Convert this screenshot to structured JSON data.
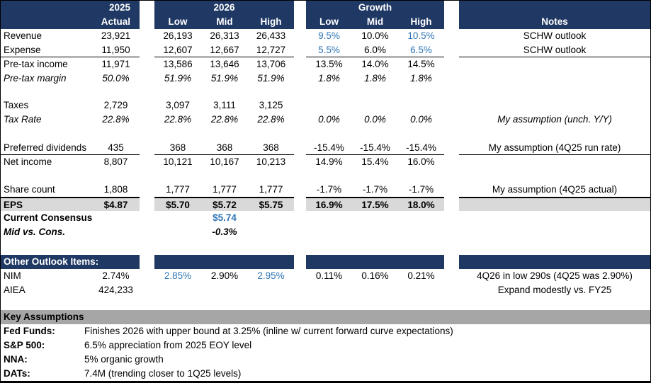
{
  "colors": {
    "header_navy": "#1F3864",
    "accent_blue": "#2E75B6",
    "eps_highlight_gray": "#D9D9D9",
    "section_bar_gray": "#A6A6A6"
  },
  "header": {
    "actual_year": "2025",
    "actual_label": "Actual",
    "forecast_year": "2026",
    "growth_label": "Growth",
    "low": "Low",
    "mid": "Mid",
    "high": "High",
    "notes_label": "Notes"
  },
  "rows": {
    "revenue": {
      "label": "Revenue",
      "actual": "23,921",
      "low": "26,193",
      "mid": "26,313",
      "high": "26,433",
      "growth_low": "9.5%",
      "growth_mid": "10.0%",
      "growth_high": "10.5%",
      "note": "SCHW outlook"
    },
    "expense": {
      "label": "Expense",
      "actual": "11,950",
      "low": "12,607",
      "mid": "12,667",
      "high": "12,727",
      "growth_low": "5.5%",
      "growth_mid": "6.0%",
      "growth_high": "6.5%",
      "note": "SCHW outlook"
    },
    "pretax_income": {
      "label": "Pre-tax income",
      "actual": "11,971",
      "low": "13,586",
      "mid": "13,646",
      "high": "13,706",
      "growth_low": "13.5%",
      "growth_mid": "14.0%",
      "growth_high": "14.5%"
    },
    "pretax_margin": {
      "label": "Pre-tax margin",
      "actual": "50.0%",
      "low": "51.9%",
      "mid": "51.9%",
      "high": "51.9%",
      "growth_low": "1.8%",
      "growth_mid": "1.8%",
      "growth_high": "1.8%"
    },
    "taxes": {
      "label": "Taxes",
      "actual": "2,729",
      "low": "3,097",
      "mid": "3,111",
      "high": "3,125"
    },
    "tax_rate": {
      "label": "Tax Rate",
      "actual": "22.8%",
      "low": "22.8%",
      "mid": "22.8%",
      "high": "22.8%",
      "growth_low": "0.0%",
      "growth_mid": "0.0%",
      "growth_high": "0.0%",
      "note": "My assumption (unch. Y/Y)"
    },
    "preferred_dividends": {
      "label": "Preferred dividends",
      "actual": "435",
      "low": "368",
      "mid": "368",
      "high": "368",
      "growth_low": "-15.4%",
      "growth_mid": "-15.4%",
      "growth_high": "-15.4%",
      "note": "My assumption (4Q25 run rate)"
    },
    "net_income": {
      "label": "Net income",
      "actual": "8,807",
      "low": "10,121",
      "mid": "10,167",
      "high": "10,213",
      "growth_low": "14.9%",
      "growth_mid": "15.4%",
      "growth_high": "16.0%"
    },
    "share_count": {
      "label": "Share count",
      "actual": "1,808",
      "low": "1,777",
      "mid": "1,777",
      "high": "1,777",
      "growth_low": "-1.7%",
      "growth_mid": "-1.7%",
      "growth_high": "-1.7%",
      "note": "My assumption (4Q25 actual)"
    },
    "eps": {
      "label": "EPS",
      "actual": "$4.87",
      "low": "$5.70",
      "mid": "$5.72",
      "high": "$5.75",
      "growth_low": "16.9%",
      "growth_mid": "17.5%",
      "growth_high": "18.0%"
    },
    "current_consensus": {
      "label": "Current Consensus",
      "mid": "$5.74"
    },
    "mid_vs_cons": {
      "label": "Mid vs. Cons.",
      "mid": "-0.3%"
    }
  },
  "other_outlook": {
    "section_title": "Other Outlook Items:",
    "nim": {
      "label": "NIM",
      "actual": "2.74%",
      "low": "2.85%",
      "mid": "2.90%",
      "high": "2.95%",
      "growth_low": "0.11%",
      "growth_mid": "0.16%",
      "growth_high": "0.21%",
      "note": "4Q26 in low 290s (4Q25 was 2.90%)"
    },
    "aiea": {
      "label": "AIEA",
      "actual": "424,233",
      "note": "Expand modestly vs. FY25"
    }
  },
  "key_assumptions": {
    "section_title": "Key Assumptions",
    "items": [
      {
        "label": "Fed Funds:",
        "text": "Finishes 2026 with upper bound at 3.25% (inline w/ current forward curve expectations)"
      },
      {
        "label": "S&P 500:",
        "text": "6.5% appreciation from 2025 EOY level"
      },
      {
        "label": "NNA:",
        "text": "5% organic growth"
      },
      {
        "label": "DATs:",
        "text": "7.4M (trending closer to 1Q25 levels)"
      }
    ]
  }
}
